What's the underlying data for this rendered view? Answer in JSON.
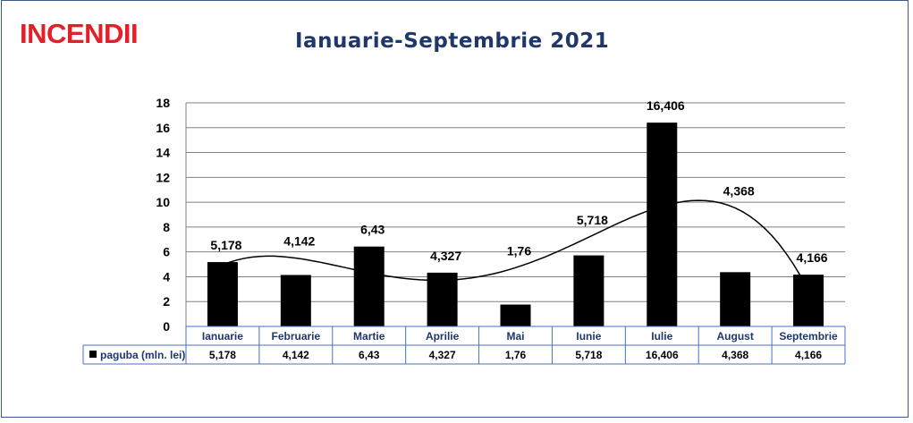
{
  "header": {
    "brand": "INCENDII",
    "title": "Ianuarie-Septembrie 2021"
  },
  "colors": {
    "brand": "#e3202a",
    "title": "#1f3769",
    "bars": "#000000",
    "grid": "#808080",
    "table_border": "#4472c4"
  },
  "chart_data": {
    "type": "bar",
    "categories": [
      "Ianuarie",
      "Februarie",
      "Martie",
      "Aprilie",
      "Mai",
      "Iunie",
      "Iulie",
      "August",
      "Septembrie"
    ],
    "series": [
      {
        "name": "paguba (mln. lei)",
        "values": [
          5.178,
          4.142,
          6.43,
          4.327,
          1.76,
          5.718,
          16.406,
          4.368,
          4.166
        ],
        "labels": [
          "5,178",
          "4,142",
          "6,43",
          "4,327",
          "1,76",
          "5,718",
          "16,406",
          "4,368",
          "4,166"
        ]
      }
    ],
    "ylim": [
      0,
      18
    ],
    "yticks": [
      0,
      2,
      4,
      6,
      8,
      10,
      12,
      14,
      16,
      18
    ],
    "grid": true,
    "trendline": "polynomial",
    "data_table": true,
    "xlabel": "",
    "ylabel": ""
  }
}
